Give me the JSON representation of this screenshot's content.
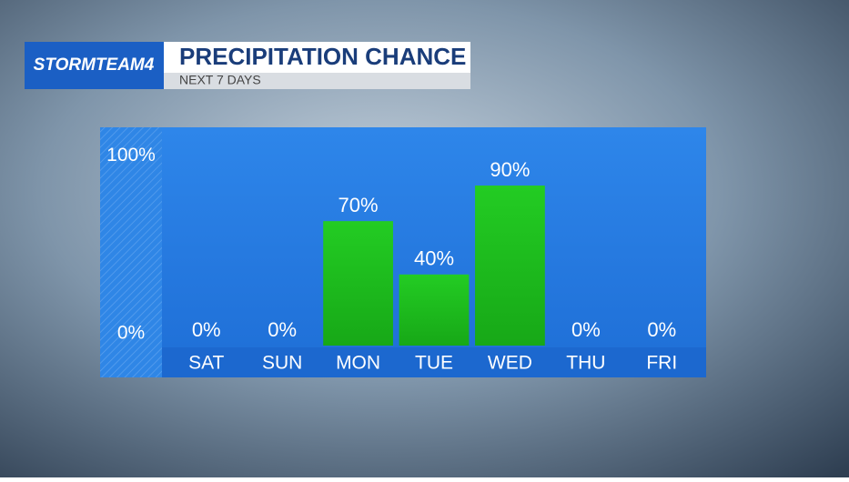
{
  "brand": "STORMTEAM4",
  "chart_data": {
    "type": "bar",
    "title": "PRECIPITATION CHANCE",
    "subtitle": "NEXT 7 DAYS",
    "categories": [
      "SAT",
      "SUN",
      "MON",
      "TUE",
      "WED",
      "THU",
      "FRI"
    ],
    "values": [
      0,
      0,
      70,
      40,
      90,
      0,
      0
    ],
    "value_labels": [
      "0%",
      "0%",
      "70%",
      "40%",
      "90%",
      "0%",
      "0%"
    ],
    "color": "#1fc21f",
    "ylim": [
      0,
      100
    ],
    "yticks": [
      {
        "value": 0,
        "label": "0%"
      },
      {
        "value": 100,
        "label": "100%"
      }
    ],
    "grid": false
  }
}
